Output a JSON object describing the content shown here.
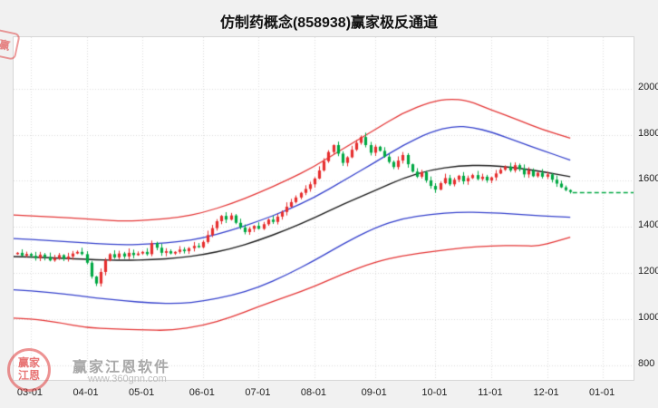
{
  "title": "仿制药概念(858938)赢家极反通道",
  "watermark": {
    "seal_text": "赢家江恩",
    "brand": "赢家江恩软件",
    "url": "www.360gnn.com",
    "corner_text": "赢"
  },
  "chart_data": {
    "type": "candlestick",
    "title": "仿制药概念(858938)赢家极反通道",
    "ylim": [
      737,
      2223
    ],
    "y_ticks": [
      800,
      1000,
      1200,
      1400,
      1600,
      1800,
      2000
    ],
    "x_tick_labels": [
      "03-01",
      "04-01",
      "05-01",
      "06-01",
      "07-01",
      "08-01",
      "09-01",
      "10-01",
      "11-01",
      "12-01",
      "01-01"
    ],
    "x_tick_indices": [
      0,
      12,
      24,
      37,
      49,
      61,
      74,
      87,
      99,
      111,
      123
    ],
    "x_range": [
      -3.7,
      129.6
    ],
    "start_index": -3,
    "closes": [
      1288,
      1276,
      1283,
      1275,
      1265,
      1280,
      1270,
      1255,
      1265,
      1278,
      1262,
      1272,
      1285,
      1292,
      1282,
      1245,
      1185,
      1155,
      1205,
      1255,
      1282,
      1268,
      1285,
      1272,
      1288,
      1278,
      1285,
      1292,
      1282,
      1330,
      1310,
      1288,
      1295,
      1285,
      1292,
      1302,
      1295,
      1308,
      1318,
      1312,
      1335,
      1365,
      1395,
      1425,
      1448,
      1432,
      1450,
      1418,
      1398,
      1378,
      1392,
      1405,
      1392,
      1412,
      1432,
      1422,
      1445,
      1465,
      1488,
      1508,
      1528,
      1548,
      1565,
      1585,
      1610,
      1645,
      1685,
      1725,
      1755,
      1718,
      1678,
      1702,
      1735,
      1765,
      1790,
      1755,
      1722,
      1748,
      1730,
      1705,
      1682,
      1660,
      1688,
      1712,
      1672,
      1640,
      1618,
      1638,
      1602,
      1578,
      1562,
      1590,
      1612,
      1585,
      1605,
      1622,
      1598,
      1612,
      1625,
      1608,
      1618,
      1602,
      1615,
      1632,
      1648,
      1662,
      1645,
      1668,
      1652,
      1628,
      1645,
      1620,
      1635,
      1618,
      1628,
      1605,
      1588,
      1572,
      1560,
      1552
    ],
    "channel_lines": [
      {
        "name": "upper-red-channel",
        "color": "#e43535",
        "width": 1.3,
        "points": [
          [
            -4,
            1452
          ],
          [
            0,
            1448
          ],
          [
            8,
            1440
          ],
          [
            14,
            1432
          ],
          [
            20,
            1425
          ],
          [
            26,
            1430
          ],
          [
            32,
            1442
          ],
          [
            37,
            1462
          ],
          [
            43,
            1500
          ],
          [
            49,
            1548
          ],
          [
            55,
            1602
          ],
          [
            61,
            1662
          ],
          [
            67,
            1738
          ],
          [
            74,
            1822
          ],
          [
            80,
            1895
          ],
          [
            86,
            1942
          ],
          [
            90,
            1956
          ],
          [
            94,
            1948
          ],
          [
            99,
            1908
          ],
          [
            105,
            1862
          ],
          [
            110,
            1822
          ],
          [
            116,
            1785
          ]
        ]
      },
      {
        "name": "upper-blue-channel",
        "color": "#3440cc",
        "width": 1.3,
        "points": [
          [
            -4,
            1350
          ],
          [
            0,
            1346
          ],
          [
            8,
            1336
          ],
          [
            14,
            1328
          ],
          [
            20,
            1322
          ],
          [
            26,
            1326
          ],
          [
            32,
            1336
          ],
          [
            37,
            1352
          ],
          [
            43,
            1385
          ],
          [
            49,
            1425
          ],
          [
            55,
            1472
          ],
          [
            61,
            1528
          ],
          [
            67,
            1598
          ],
          [
            74,
            1680
          ],
          [
            80,
            1755
          ],
          [
            86,
            1812
          ],
          [
            91,
            1838
          ],
          [
            95,
            1832
          ],
          [
            99,
            1812
          ],
          [
            105,
            1768
          ],
          [
            110,
            1732
          ],
          [
            116,
            1690
          ]
        ]
      },
      {
        "name": "middle-black-line",
        "color": "#1a1a1a",
        "width": 1.4,
        "points": [
          [
            -4,
            1272
          ],
          [
            0,
            1270
          ],
          [
            8,
            1264
          ],
          [
            14,
            1258
          ],
          [
            20,
            1255
          ],
          [
            26,
            1258
          ],
          [
            32,
            1266
          ],
          [
            37,
            1280
          ],
          [
            43,
            1305
          ],
          [
            49,
            1342
          ],
          [
            55,
            1388
          ],
          [
            61,
            1440
          ],
          [
            67,
            1498
          ],
          [
            74,
            1558
          ],
          [
            80,
            1612
          ],
          [
            86,
            1648
          ],
          [
            92,
            1665
          ],
          [
            98,
            1668
          ],
          [
            104,
            1658
          ],
          [
            110,
            1640
          ],
          [
            116,
            1618
          ]
        ]
      },
      {
        "name": "lower-blue-channel",
        "color": "#3440cc",
        "width": 1.3,
        "points": [
          [
            -4,
            1128
          ],
          [
            0,
            1124
          ],
          [
            8,
            1108
          ],
          [
            14,
            1092
          ],
          [
            20,
            1080
          ],
          [
            26,
            1070
          ],
          [
            32,
            1068
          ],
          [
            37,
            1078
          ],
          [
            43,
            1102
          ],
          [
            49,
            1138
          ],
          [
            55,
            1192
          ],
          [
            61,
            1255
          ],
          [
            67,
            1325
          ],
          [
            74,
            1398
          ],
          [
            80,
            1438
          ],
          [
            86,
            1455
          ],
          [
            92,
            1465
          ],
          [
            98,
            1463
          ],
          [
            104,
            1456
          ],
          [
            110,
            1448
          ],
          [
            116,
            1442
          ]
        ]
      },
      {
        "name": "lower-red-channel",
        "color": "#e43535",
        "width": 1.3,
        "points": [
          [
            -4,
            1005
          ],
          [
            0,
            1002
          ],
          [
            6,
            986
          ],
          [
            12,
            963
          ],
          [
            18,
            958
          ],
          [
            24,
            954
          ],
          [
            30,
            951
          ],
          [
            37,
            972
          ],
          [
            43,
            1008
          ],
          [
            49,
            1055
          ],
          [
            55,
            1098
          ],
          [
            61,
            1142
          ],
          [
            67,
            1196
          ],
          [
            74,
            1248
          ],
          [
            80,
            1276
          ],
          [
            87,
            1296
          ],
          [
            93,
            1310
          ],
          [
            99,
            1318
          ],
          [
            105,
            1320
          ],
          [
            109,
            1316
          ],
          [
            113,
            1338
          ],
          [
            116,
            1356
          ]
        ]
      }
    ],
    "flat_line": {
      "value": 1552,
      "from_index": 116.5,
      "color": "#00a843"
    },
    "colors": {
      "up": "#e62e2e",
      "down": "#00a843",
      "grid": "#dcdcdc",
      "plot_bg": "#ffffff"
    },
    "legend_position": "none",
    "grid": true
  }
}
